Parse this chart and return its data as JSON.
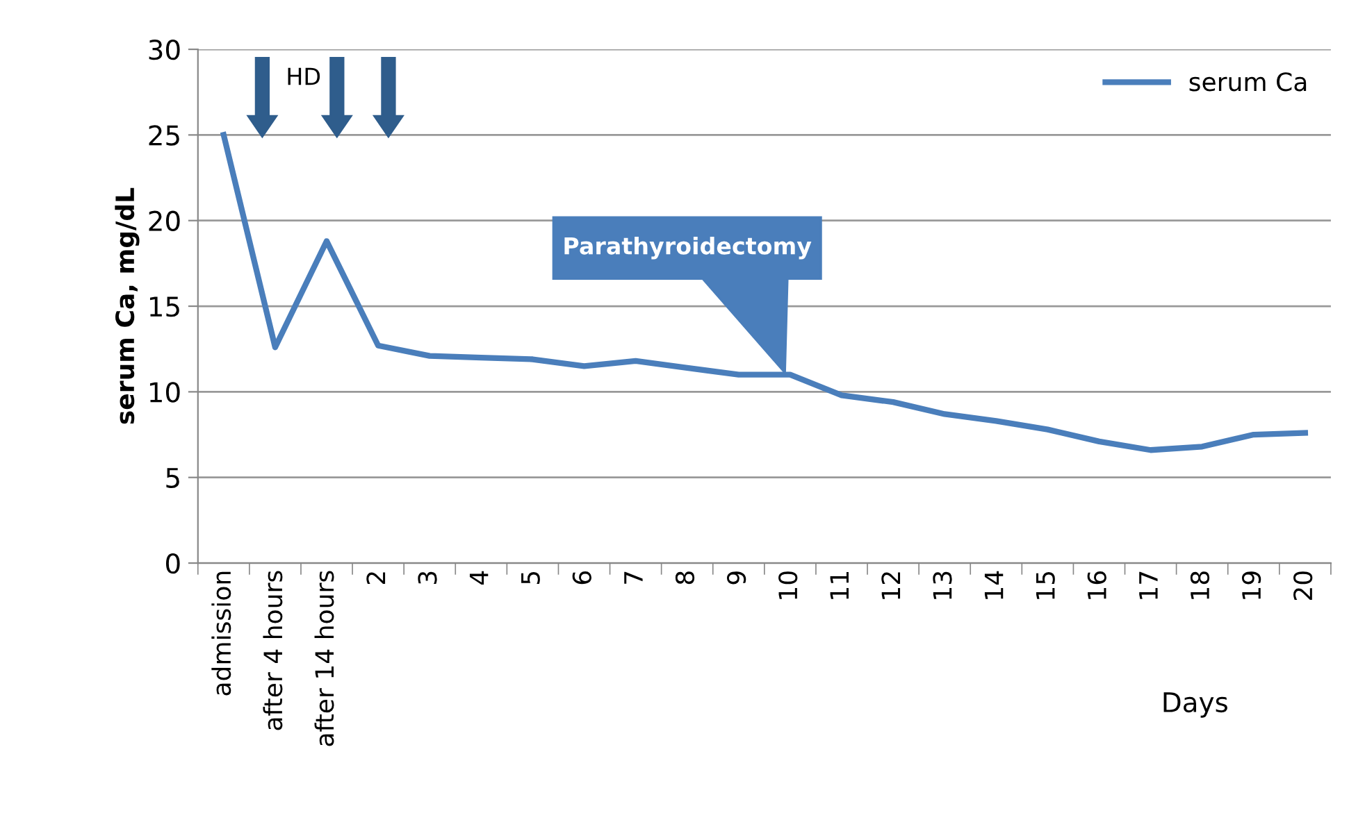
{
  "chart_data": {
    "type": "line",
    "ylabel": "serum Ca, mg/dL",
    "xlabel": "Days",
    "categories": [
      "admission",
      "after 4 hours",
      "after 14 hours",
      "2",
      "3",
      "4",
      "5",
      "6",
      "7",
      "8",
      "9",
      "10",
      "11",
      "12",
      "13",
      "14",
      "15",
      "16",
      "17",
      "18",
      "19",
      "20"
    ],
    "series": [
      {
        "name": "serum Ca",
        "color": "#4a7ebb",
        "values": [
          25,
          12.6,
          18.8,
          12.7,
          12.1,
          12.0,
          11.9,
          11.5,
          11.8,
          11.4,
          11.0,
          11.0,
          9.8,
          9.4,
          8.7,
          8.3,
          7.8,
          7.1,
          6.6,
          6.8,
          7.5,
          7.6
        ]
      }
    ],
    "ylim": [
      0,
      30
    ],
    "yticks": [
      0,
      5,
      10,
      15,
      20,
      25,
      30
    ],
    "grid": "y",
    "legend": "top right",
    "marker": "none",
    "line_style": "solid",
    "annotations": [
      "HD",
      "Parathyroidectomy"
    ]
  }
}
